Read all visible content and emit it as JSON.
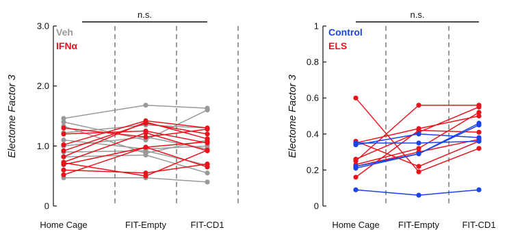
{
  "chart_data": [
    {
      "type": "line",
      "ylabel": "Electome Factor 3",
      "ylim": [
        0,
        3.0
      ],
      "yticks": [
        {
          "value": 0,
          "label": "0"
        },
        {
          "value": 1,
          "label": "1.0"
        },
        {
          "value": 2,
          "label": "2.0"
        },
        {
          "value": 3,
          "label": "3.0"
        }
      ],
      "categories": [
        "Home Cage",
        "FIT-Empty",
        "FIT-CD1"
      ],
      "significance": {
        "label": "n.s.",
        "span": [
          0,
          2
        ]
      },
      "colors": {
        "Veh": "#999999",
        "IFNα": "#e8141c"
      },
      "legend": [
        {
          "name": "Veh",
          "color": "#999999"
        },
        {
          "name": "IFNα",
          "color": "#e8141c"
        }
      ],
      "series": [
        {
          "group": "Veh",
          "values": [
            1.46,
            1.68,
            1.63
          ]
        },
        {
          "group": "Veh",
          "values": [
            1.4,
            1.1,
            1.6
          ]
        },
        {
          "group": "Veh",
          "values": [
            1.33,
            0.88,
            1.1
          ]
        },
        {
          "group": "Veh",
          "values": [
            1.22,
            1.35,
            1.3
          ]
        },
        {
          "group": "Veh",
          "values": [
            1.1,
            0.95,
            1.0
          ]
        },
        {
          "group": "Veh",
          "values": [
            1.0,
            1.15,
            0.95
          ]
        },
        {
          "group": "Veh",
          "values": [
            0.9,
            0.92,
            0.68
          ]
        },
        {
          "group": "Veh",
          "values": [
            0.82,
            0.85,
            0.55
          ]
        },
        {
          "group": "Veh",
          "values": [
            0.47,
            0.47,
            0.4
          ]
        },
        {
          "group": "IFNα",
          "values": [
            1.3,
            1.15,
            1.28
          ]
        },
        {
          "group": "IFNα",
          "values": [
            1.2,
            1.25,
            1.05
          ]
        },
        {
          "group": "IFNα",
          "values": [
            1.02,
            1.42,
            1.3
          ]
        },
        {
          "group": "IFNα",
          "values": [
            0.92,
            1.38,
            1.2
          ]
        },
        {
          "group": "IFNα",
          "values": [
            0.82,
            1.4,
            1.12
          ]
        },
        {
          "group": "IFNα",
          "values": [
            0.73,
            1.22,
            0.92
          ]
        },
        {
          "group": "IFNα",
          "values": [
            0.69,
            0.98,
            1.07
          ]
        },
        {
          "group": "IFNα",
          "values": [
            0.6,
            0.55,
            0.7
          ]
        },
        {
          "group": "IFNα",
          "values": [
            0.52,
            0.98,
            0.65
          ]
        },
        {
          "group": "IFNα",
          "values": [
            0.72,
            0.5,
            0.93
          ]
        }
      ]
    },
    {
      "type": "line",
      "ylabel": "Electome Factor 3",
      "ylim": [
        0,
        1
      ],
      "yticks": [
        {
          "value": 0,
          "label": "0"
        },
        {
          "value": 0.2,
          "label": "0.2"
        },
        {
          "value": 0.4,
          "label": "0.4"
        },
        {
          "value": 0.6,
          "label": "0.6"
        },
        {
          "value": 0.8,
          "label": "0.8"
        },
        {
          "value": 1,
          "label": "1"
        }
      ],
      "categories": [
        "Home Cage",
        "FIT-Empty",
        "FIT-CD1"
      ],
      "significance": {
        "label": "n.s.",
        "span": [
          0,
          2
        ]
      },
      "colors": {
        "Control": "#1a44e8",
        "ELS": "#e8141c"
      },
      "legend": [
        {
          "name": "Control",
          "color": "#1a44e8"
        },
        {
          "name": "ELS",
          "color": "#e8141c"
        }
      ],
      "series": [
        {
          "group": "ELS",
          "values": [
            0.6,
            0.19,
            0.32
          ]
        },
        {
          "group": "ELS",
          "values": [
            0.36,
            0.22,
            0.36
          ]
        },
        {
          "group": "ELS",
          "values": [
            0.35,
            0.43,
            0.5
          ]
        },
        {
          "group": "ELS",
          "values": [
            0.26,
            0.41,
            0.55
          ]
        },
        {
          "group": "ELS",
          "values": [
            0.25,
            0.56,
            0.56
          ]
        },
        {
          "group": "ELS",
          "values": [
            0.23,
            0.32,
            0.52
          ]
        },
        {
          "group": "ELS",
          "values": [
            0.16,
            0.42,
            0.41
          ]
        },
        {
          "group": "ELS",
          "values": [
            0.22,
            0.3,
            0.37
          ]
        },
        {
          "group": "Control",
          "values": [
            0.35,
            0.35,
            0.36
          ]
        },
        {
          "group": "Control",
          "values": [
            0.34,
            0.4,
            0.38
          ]
        },
        {
          "group": "Control",
          "values": [
            0.22,
            0.29,
            0.46
          ]
        },
        {
          "group": "Control",
          "values": [
            0.21,
            0.29,
            0.45
          ]
        },
        {
          "group": "Control",
          "values": [
            0.09,
            0.06,
            0.09
          ]
        }
      ]
    }
  ]
}
